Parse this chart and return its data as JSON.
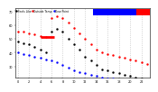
{
  "background_color": "#ffffff",
  "grid_color": "#bbbbbb",
  "temp_color": "#ff0000",
  "dew_color": "#0000ff",
  "feels_color": "#000000",
  "legend_labels": [
    "Outside Temp",
    "Dew Point",
    "Feels Like"
  ],
  "legend_box_blue": "#0000ff",
  "legend_box_red": "#ff0000",
  "ylim": [
    22,
    72
  ],
  "xlim": [
    -0.5,
    23.5
  ],
  "temp_data": [
    55,
    55,
    54,
    53,
    52,
    51,
    65,
    66,
    65,
    62,
    58,
    54,
    50,
    46,
    42,
    40,
    39,
    38,
    37,
    36,
    35,
    34,
    33,
    32
  ],
  "dew_data": [
    40,
    39,
    38,
    37,
    36,
    35,
    34,
    33,
    31,
    29,
    27,
    26,
    25,
    24,
    23,
    22,
    21,
    21,
    20,
    20,
    20,
    19,
    19,
    19
  ],
  "feels_data": [
    48,
    47,
    46,
    44,
    42,
    40,
    55,
    57,
    55,
    50,
    46,
    42,
    37,
    34,
    31,
    28,
    27,
    26,
    25,
    24,
    23,
    22,
    21,
    20
  ],
  "temp_line_x": [
    4,
    6
  ],
  "temp_line_y": [
    51,
    51
  ],
  "x_tick_step": 2,
  "y_ticks": [
    30,
    40,
    50,
    60,
    70
  ],
  "legend_text_fontsize": 2.2,
  "tick_fontsize": 2.5,
  "markersize": 1.5
}
